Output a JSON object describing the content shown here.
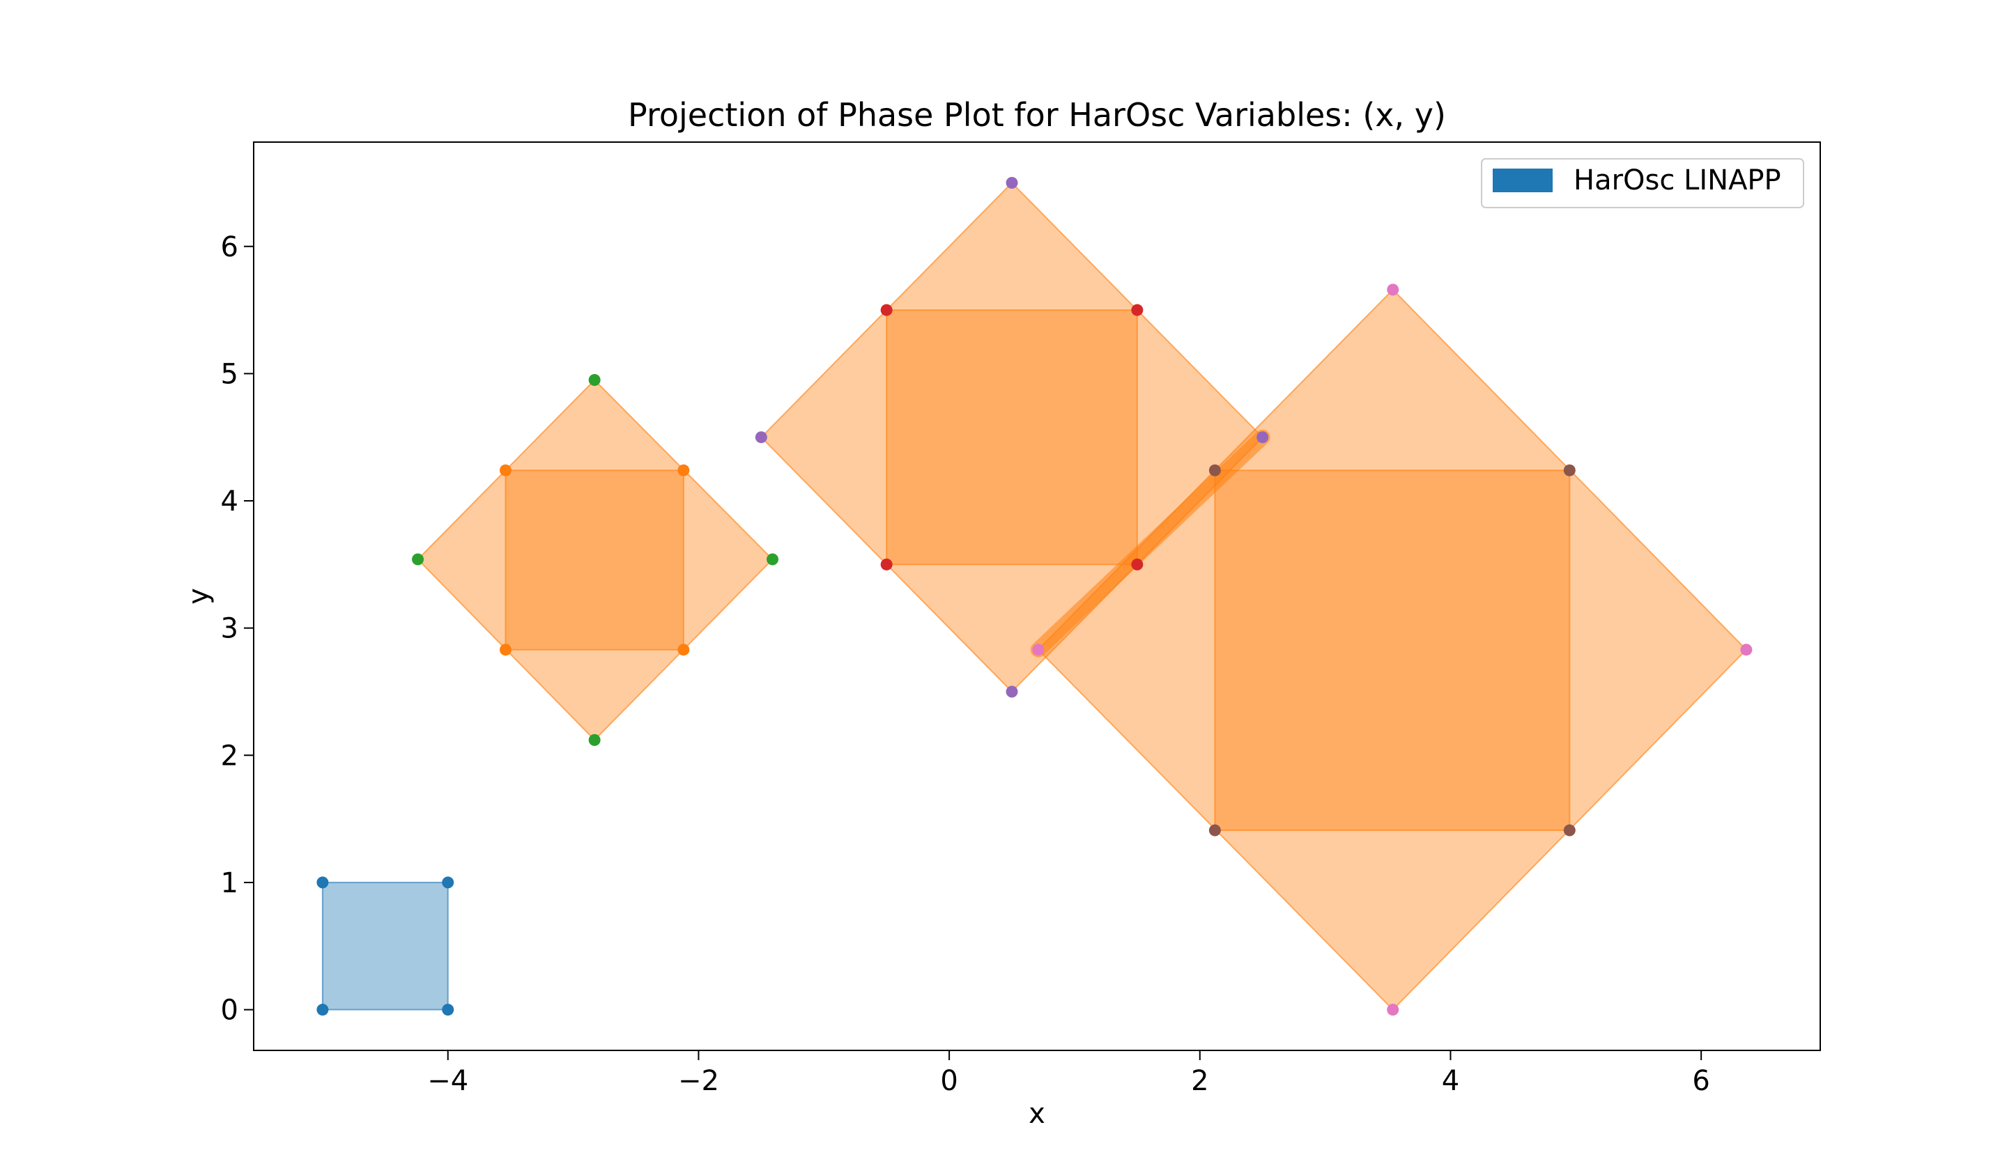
{
  "chart_data": {
    "type": "scatter",
    "title": "Projection of Phase Plot for HarOsc Variables: (x, y)",
    "xlabel": "x",
    "ylabel": "y",
    "xlim": [
      -5.55,
      6.95
    ],
    "ylim": [
      -0.32,
      6.82
    ],
    "xticks": [
      -4,
      -2,
      0,
      2,
      4,
      6
    ],
    "yticks": [
      0,
      1,
      2,
      3,
      4,
      5,
      6
    ],
    "xtick_labels": [
      "−4",
      "−2",
      "0",
      "2",
      "4",
      "6"
    ],
    "ytick_labels": [
      "0",
      "1",
      "2",
      "3",
      "4",
      "5",
      "6"
    ],
    "grid": false,
    "legend": {
      "position": "top-right",
      "entries": [
        {
          "label": "HarOsc LINAPP",
          "color": "#1f77b4"
        }
      ]
    },
    "polygons": [
      {
        "fill": "#1f77b4",
        "opacity": 0.4,
        "points": [
          [
            -5,
            0
          ],
          [
            -4,
            0
          ],
          [
            -4,
            1
          ],
          [
            -5,
            1
          ]
        ]
      },
      {
        "fill": "#ff7f0e",
        "opacity": 0.4,
        "points": [
          [
            -2.83,
            2.12
          ],
          [
            -1.41,
            3.54
          ],
          [
            -2.83,
            4.95
          ],
          [
            -4.24,
            3.54
          ]
        ]
      },
      {
        "fill": "#ff7f0e",
        "opacity": 0.4,
        "points": [
          [
            -3.54,
            2.83
          ],
          [
            -2.12,
            2.83
          ],
          [
            -2.12,
            4.24
          ],
          [
            -3.54,
            4.24
          ]
        ]
      },
      {
        "fill": "#ff7f0e",
        "opacity": 0.4,
        "points": [
          [
            0.5,
            2.5
          ],
          [
            2.5,
            4.5
          ],
          [
            0.5,
            6.5
          ],
          [
            -1.5,
            4.5
          ]
        ]
      },
      {
        "fill": "#ff7f0e",
        "opacity": 0.4,
        "points": [
          [
            -0.5,
            3.5
          ],
          [
            1.5,
            3.5
          ],
          [
            1.5,
            5.5
          ],
          [
            -0.5,
            5.5
          ]
        ]
      },
      {
        "fill": "#ff7f0e",
        "opacity": 0.4,
        "points": [
          [
            3.54,
            0
          ],
          [
            6.36,
            2.83
          ],
          [
            3.54,
            5.66
          ],
          [
            0.71,
            2.83
          ]
        ]
      },
      {
        "fill": "#ff7f0e",
        "opacity": 0.4,
        "points": [
          [
            2.12,
            1.41
          ],
          [
            4.95,
            1.41
          ],
          [
            4.95,
            4.24
          ],
          [
            2.12,
            4.24
          ]
        ]
      }
    ],
    "segments": [
      {
        "color": "#ff7f0e",
        "opacity": 0.55,
        "points": [
          [
            0.71,
            2.83
          ],
          [
            2.5,
            4.5
          ]
        ]
      }
    ],
    "series": [
      {
        "color": "#1f77b4",
        "points": [
          [
            -5,
            0
          ],
          [
            -4,
            0
          ],
          [
            -4,
            1
          ],
          [
            -5,
            1
          ]
        ]
      },
      {
        "color": "#ff7f0e",
        "points": [
          [
            -3.54,
            2.83
          ],
          [
            -2.12,
            2.83
          ],
          [
            -2.12,
            4.24
          ],
          [
            -3.54,
            4.24
          ]
        ]
      },
      {
        "color": "#2ca02c",
        "points": [
          [
            -2.83,
            2.12
          ],
          [
            -1.41,
            3.54
          ],
          [
            -2.83,
            4.95
          ],
          [
            -4.24,
            3.54
          ]
        ]
      },
      {
        "color": "#d62728",
        "points": [
          [
            -0.5,
            3.5
          ],
          [
            1.5,
            3.5
          ],
          [
            1.5,
            5.5
          ],
          [
            -0.5,
            5.5
          ]
        ]
      },
      {
        "color": "#9467bd",
        "points": [
          [
            0.5,
            2.5
          ],
          [
            2.5,
            4.5
          ],
          [
            0.5,
            6.5
          ],
          [
            -1.5,
            4.5
          ]
        ]
      },
      {
        "color": "#8c564b",
        "points": [
          [
            2.12,
            1.41
          ],
          [
            4.95,
            1.41
          ],
          [
            4.95,
            4.24
          ],
          [
            2.12,
            4.24
          ]
        ]
      },
      {
        "color": "#e377c2",
        "points": [
          [
            3.54,
            0
          ],
          [
            6.36,
            2.83
          ],
          [
            3.54,
            5.66
          ],
          [
            0.71,
            2.83
          ]
        ]
      }
    ]
  }
}
